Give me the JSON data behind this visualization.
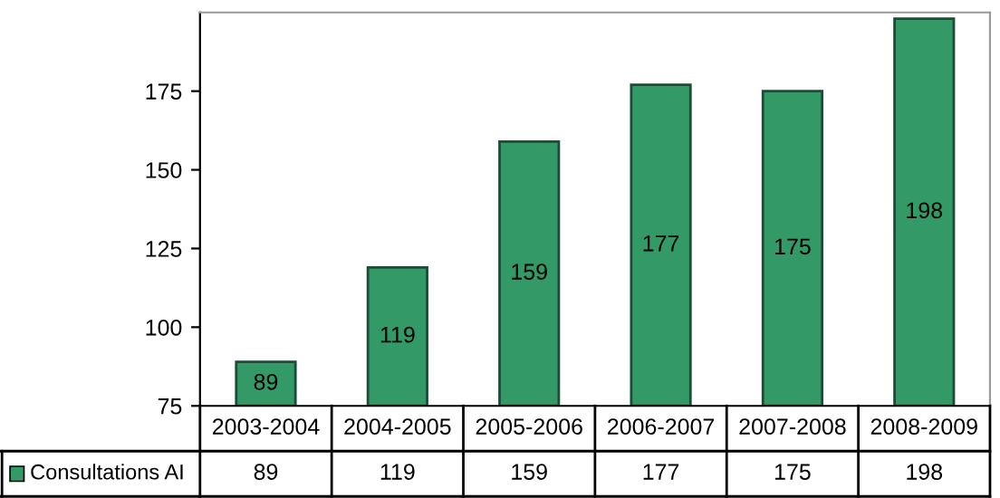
{
  "chart_data": {
    "type": "bar",
    "categories": [
      "2003-2004",
      "2004-2005",
      "2005-2006",
      "2006-2007",
      "2007-2008",
      "2008-2009"
    ],
    "series": [
      {
        "name": "Consultations AI",
        "color": "#339966",
        "values": [
          89,
          119,
          159,
          177,
          175,
          198
        ]
      }
    ],
    "annotations": [
      "89",
      "119",
      "159",
      "177",
      "175",
      "198"
    ],
    "ylim": [
      75,
      200
    ],
    "yticks": [
      75,
      100,
      125,
      150,
      175
    ],
    "data_labels": true,
    "grid": false,
    "legend": "bottom"
  }
}
